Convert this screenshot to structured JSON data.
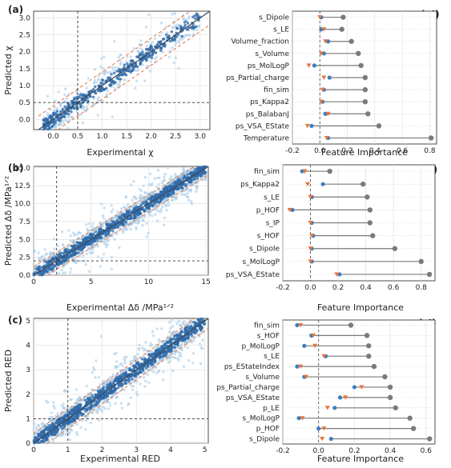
{
  "chart_data": [
    {
      "type": "scatter",
      "panel_label": "(a)",
      "xlabel": "Experimental χ",
      "ylabel": "Predicted χ",
      "xlim": [
        -0.4,
        3.2
      ],
      "ylim": [
        -0.3,
        3.2
      ],
      "xticks": [
        "0.0",
        "0.5",
        "1.0",
        "1.5",
        "2.0",
        "2.5",
        "3.0"
      ],
      "yticks": [
        "0.0",
        "0.5",
        "1.0",
        "1.5",
        "2.0",
        "2.5",
        "3.0"
      ],
      "xtick_values": [
        0,
        0.5,
        1,
        1.5,
        2,
        2.5,
        3
      ],
      "ytick_values": [
        0,
        0.5,
        1,
        1.5,
        2,
        2.5,
        3
      ],
      "vline": 0.5,
      "hline": 0.5,
      "band": 0.4,
      "grid": true
    },
    {
      "type": "scatter",
      "panel_label": "(b)",
      "xlabel": "Experimental  Δδ /MPa¹ᐟ²",
      "ylabel": "Predicted Δδ /MPa¹ᐟ²",
      "xlim": [
        0,
        15.2
      ],
      "ylim": [
        0,
        15.2
      ],
      "xticks": [
        "0",
        "5",
        "10",
        "15"
      ],
      "yticks": [
        "0.0",
        "2.5",
        "5.0",
        "7.5",
        "10.0",
        "12.5",
        "15.0"
      ],
      "xtick_values": [
        0,
        5,
        10,
        15
      ],
      "ytick_values": [
        0,
        2.5,
        5,
        7.5,
        10,
        12.5,
        15
      ],
      "vline": 2,
      "hline": 2,
      "band": 1.2,
      "grid": true
    },
    {
      "type": "scatter",
      "panel_label": "(c)",
      "xlabel": "Experimental  RED",
      "ylabel": "Predicted RED",
      "xlim": [
        0,
        5.1
      ],
      "ylim": [
        0,
        5.1
      ],
      "xticks": [
        "0",
        "1",
        "2",
        "3",
        "4",
        "5"
      ],
      "yticks": [
        "0",
        "1",
        "2",
        "3",
        "4",
        "5"
      ],
      "xtick_values": [
        0,
        1,
        2,
        3,
        4,
        5
      ],
      "ytick_values": [
        0,
        1,
        2,
        3,
        4,
        5
      ],
      "vline": 1,
      "hline": 1,
      "band": 0.4,
      "grid": true
    },
    {
      "type": "dot",
      "panel_label": "(a’)",
      "xlabel": "Feature Importance",
      "xlim": [
        -0.2,
        0.85
      ],
      "xticks": [
        "-0.2",
        "0.0",
        "0.2",
        "0.4",
        "0.6",
        "0.8"
      ],
      "xtick_values": [
        -0.2,
        0,
        0.2,
        0.4,
        0.6,
        0.8
      ],
      "features": [
        "s_Dipole",
        "s_LE",
        "Volume_fraction",
        "s_Volume",
        "ps_MolLogP",
        "ps_Partial_charge",
        "fin_sim",
        "ps_Kappa2",
        "ps_BalabanJ",
        "ps_VSA_EState",
        "Temperature"
      ],
      "series": [
        {
          "name": "grey",
          "values": [
            0.17,
            0.16,
            0.23,
            0.28,
            0.3,
            0.33,
            0.33,
            0.33,
            0.35,
            0.43,
            0.81
          ]
        },
        {
          "name": "blue",
          "values": [
            0.01,
            0.01,
            0.06,
            0.03,
            -0.04,
            0.07,
            0.03,
            0.02,
            0.04,
            -0.06,
            0.06
          ]
        },
        {
          "name": "orange",
          "values": [
            0.0,
            0.03,
            0.04,
            0.01,
            -0.08,
            0.03,
            0.02,
            0.01,
            0.06,
            -0.09,
            0.05
          ]
        }
      ]
    },
    {
      "type": "dot",
      "panel_label": "(b’)",
      "xlabel": "Feature Importance",
      "xlim": [
        -0.2,
        0.9
      ],
      "xticks": [
        "-0.2",
        "0.0",
        "0.2",
        "0.4",
        "0.6",
        "0.8"
      ],
      "xtick_values": [
        -0.2,
        0,
        0.2,
        0.4,
        0.6,
        0.8
      ],
      "features": [
        "fin_sim",
        "ps_Kappa2",
        "s_LE",
        "p_HOF",
        "s_IP",
        "s_HOF",
        "s_Dipole",
        "s_MolLogP",
        "ps_VSA_EState"
      ],
      "series": [
        {
          "name": "grey",
          "values": [
            0.14,
            0.38,
            0.41,
            0.43,
            0.43,
            0.45,
            0.61,
            0.8,
            0.86
          ]
        },
        {
          "name": "blue",
          "values": [
            -0.06,
            0.09,
            0.01,
            -0.13,
            0.01,
            0.02,
            0.01,
            0.01,
            0.21
          ]
        },
        {
          "name": "orange",
          "values": [
            -0.04,
            -0.02,
            0.0,
            -0.15,
            0.0,
            0.01,
            0.0,
            0.0,
            0.19
          ]
        }
      ]
    },
    {
      "type": "dot",
      "panel_label": "(c’)",
      "xlabel": "Feature Importance",
      "xlim": [
        -0.2,
        0.65
      ],
      "xticks": [
        "-0.2",
        "0.0",
        "0.2",
        "0.4",
        "0.6"
      ],
      "xtick_values": [
        -0.2,
        0,
        0.2,
        0.4,
        0.6
      ],
      "features": [
        "fin_sim",
        "s_HOF",
        "p_MolLogP",
        "s_LE",
        "ps_EStateIndex",
        "s_Volume",
        "ps_Partial_charge",
        "ps_VSA_EState",
        "p_LE",
        "s_MolLogP",
        "p_HOF",
        "s_Dipole"
      ],
      "series": [
        {
          "name": "grey",
          "values": [
            0.18,
            0.27,
            0.28,
            0.28,
            0.31,
            0.37,
            0.4,
            0.4,
            0.43,
            0.51,
            0.53,
            0.62
          ]
        },
        {
          "name": "blue",
          "values": [
            -0.12,
            -0.04,
            -0.08,
            0.04,
            -0.12,
            -0.08,
            0.2,
            0.12,
            0.09,
            -0.11,
            0.0,
            0.07
          ]
        },
        {
          "name": "orange",
          "values": [
            -0.1,
            -0.03,
            -0.02,
            0.03,
            -0.1,
            -0.07,
            0.24,
            0.15,
            0.05,
            -0.09,
            0.03,
            0.02
          ]
        }
      ]
    }
  ],
  "colors": {
    "point_dark": "#2f6aa8",
    "point_light": "#a9cbe8",
    "fit_line": "#3b4b5c",
    "band_line": "#e8743b",
    "lollipop": "#7a7a7a",
    "marker_blue": "#3d7fbf",
    "marker_orange": "#e8743b",
    "grid": "#dcdcdc"
  }
}
